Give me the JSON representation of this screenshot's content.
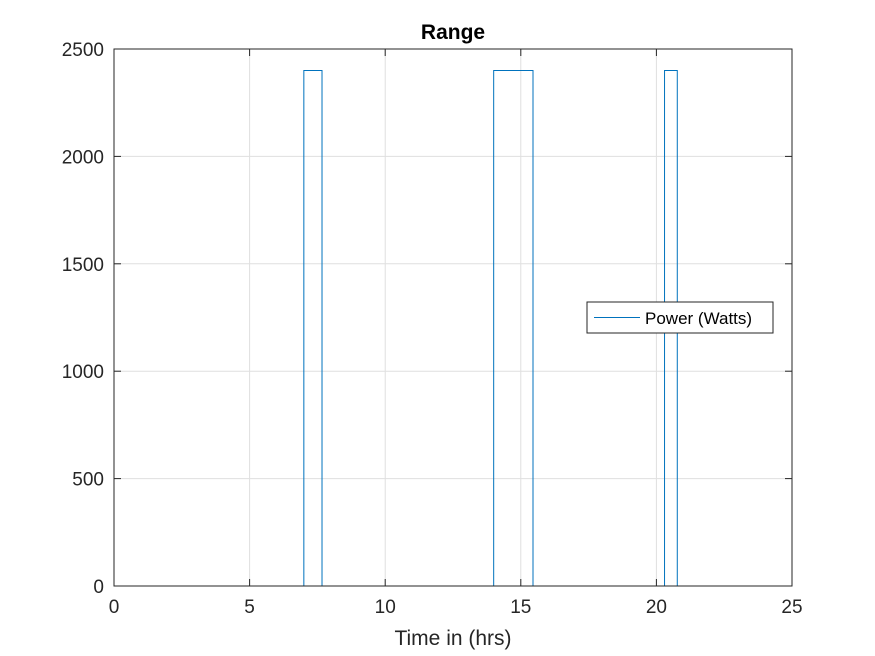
{
  "chart_data": {
    "type": "line",
    "title": "Range",
    "xlabel": "Time in (hrs)",
    "ylabel": "",
    "xlim": [
      0,
      25
    ],
    "ylim": [
      0,
      2500
    ],
    "xticks": [
      0,
      5,
      10,
      15,
      20,
      25
    ],
    "yticks": [
      0,
      500,
      1000,
      1500,
      2000,
      2500
    ],
    "xtick_labels": [
      "0",
      "5",
      "10",
      "15",
      "20",
      "25"
    ],
    "ytick_labels": [
      "0",
      "500",
      "1000",
      "1500",
      "2000",
      "2500"
    ],
    "grid": true,
    "legend_placement": "right",
    "series": [
      {
        "name": "Power (Watts)",
        "color": "#0072BD",
        "x": [
          0,
          7,
          7,
          7.67,
          7.67,
          14,
          14,
          15.45,
          15.45,
          20.3,
          20.3,
          20.77,
          20.77,
          24
        ],
        "y": [
          0,
          0,
          2400,
          2400,
          0,
          0,
          2400,
          2400,
          0,
          0,
          2400,
          2400,
          0,
          0
        ]
      }
    ]
  }
}
